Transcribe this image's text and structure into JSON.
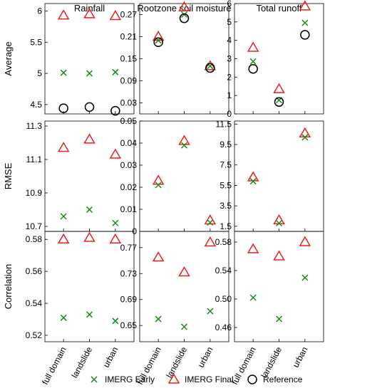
{
  "colors": {
    "early": "#1a8a1a",
    "final": "#e8201f",
    "reference": "#000000"
  },
  "legend": {
    "placement": "bottom",
    "items": [
      {
        "key": "early",
        "label": "IMERG Early",
        "marker": "x"
      },
      {
        "key": "final",
        "label": "IMERG Final",
        "marker": "triangle"
      },
      {
        "key": "reference",
        "label": "Reference",
        "marker": "circle"
      }
    ]
  },
  "chart_data": {
    "type": "scatter",
    "categories": [
      "full domain",
      "landslide",
      "urban"
    ],
    "columns": [
      "Rainfall",
      "Rootzone soil moisture",
      "Total runoff"
    ],
    "rows": [
      "Average",
      "RMSE",
      "Correlation"
    ],
    "panels": [
      {
        "row": 0,
        "col": 0,
        "ylim": [
          4.35,
          6.12
        ],
        "yticks": [
          4.5,
          5,
          5.5,
          6
        ],
        "tick_labels": [
          "4.5",
          "5",
          "5.5",
          "6"
        ],
        "series": {
          "early": [
            5.01,
            5.0,
            5.02
          ],
          "final": [
            5.93,
            5.95,
            5.92
          ],
          "reference": [
            4.44,
            4.46,
            4.4
          ]
        }
      },
      {
        "row": 0,
        "col": 1,
        "ylim": [
          0.0,
          0.3
        ],
        "yticks": [
          0.03,
          0.09,
          0.15,
          0.21,
          0.27
        ],
        "tick_labels": [
          "0.03",
          "0.09",
          "0.15",
          "0.21",
          "0.27"
        ],
        "series": {
          "early": [
            0.2,
            0.27,
            0.13
          ],
          "final": [
            0.21,
            0.29,
            0.13
          ],
          "reference": [
            0.195,
            0.26,
            0.125
          ]
        }
      },
      {
        "row": 0,
        "col": 2,
        "ylim": [
          0,
          6
        ],
        "yticks": [
          0,
          1,
          2,
          3,
          4,
          5,
          6
        ],
        "tick_labels": [
          "0",
          "1",
          "2",
          "3",
          "4",
          "5",
          "6"
        ],
        "series": {
          "early": [
            2.85,
            0.75,
            4.95
          ],
          "final": [
            3.6,
            1.35,
            5.85
          ],
          "reference": [
            2.45,
            0.65,
            4.3
          ]
        }
      },
      {
        "row": 1,
        "col": 0,
        "ylim": [
          10.67,
          11.33
        ],
        "yticks": [
          10.7,
          10.9,
          11.1,
          11.3
        ],
        "tick_labels": [
          "10.7",
          "10.9",
          "11.1",
          "11.3"
        ],
        "series": {
          "early": [
            10.76,
            10.8,
            10.72
          ],
          "final": [
            11.17,
            11.22,
            11.13
          ],
          "reference": [
            null,
            null,
            null
          ]
        }
      },
      {
        "row": 1,
        "col": 1,
        "ylim": [
          0,
          0.05
        ],
        "yticks": [
          0,
          0.01,
          0.02,
          0.03,
          0.04,
          0.05
        ],
        "tick_labels": [
          "0",
          "0.01",
          "0.02",
          "0.03",
          "0.04",
          "0.05"
        ],
        "series": {
          "early": [
            0.021,
            0.039,
            0.004
          ],
          "final": [
            0.023,
            0.041,
            0.005
          ],
          "reference": [
            null,
            null,
            null
          ]
        }
      },
      {
        "row": 1,
        "col": 2,
        "ylim": [
          1.0,
          11.8
        ],
        "yticks": [
          1.5,
          3.5,
          5.5,
          7.5,
          9.5,
          11.5
        ],
        "tick_labels": [
          "1.5",
          "3.5",
          "5.5",
          "7.5",
          "9.5",
          "11.5"
        ],
        "series": {
          "early": [
            5.9,
            1.8,
            10.2
          ],
          "final": [
            6.3,
            2.1,
            10.6
          ],
          "reference": [
            null,
            null,
            null
          ]
        }
      },
      {
        "row": 2,
        "col": 0,
        "ylim": [
          0.516,
          0.585
        ],
        "yticks": [
          0.52,
          0.54,
          0.56,
          0.58
        ],
        "tick_labels": [
          "0.52",
          "0.54",
          "0.56",
          "0.58"
        ],
        "series": {
          "early": [
            0.531,
            0.533,
            0.529
          ],
          "final": [
            0.58,
            0.581,
            0.58
          ],
          "reference": [
            null,
            null,
            null
          ]
        }
      },
      {
        "row": 2,
        "col": 1,
        "ylim": [
          0.625,
          0.795
        ],
        "yticks": [
          0.65,
          0.69,
          0.73,
          0.77
        ],
        "tick_labels": [
          "0.65",
          "0.69",
          "0.73",
          "0.77"
        ],
        "series": {
          "early": [
            0.66,
            0.648,
            0.672
          ],
          "final": [
            0.755,
            0.732,
            0.778
          ],
          "reference": [
            null,
            null,
            null
          ]
        }
      },
      {
        "row": 2,
        "col": 2,
        "ylim": [
          0.44,
          0.595
        ],
        "yticks": [
          0.46,
          0.5,
          0.54,
          0.58
        ],
        "tick_labels": [
          "0.46",
          "0.50",
          "0.54",
          "0.58"
        ],
        "series": {
          "early": [
            0.502,
            0.472,
            0.53
          ],
          "final": [
            0.57,
            0.56,
            0.58
          ],
          "reference": [
            null,
            null,
            null
          ]
        }
      }
    ]
  }
}
